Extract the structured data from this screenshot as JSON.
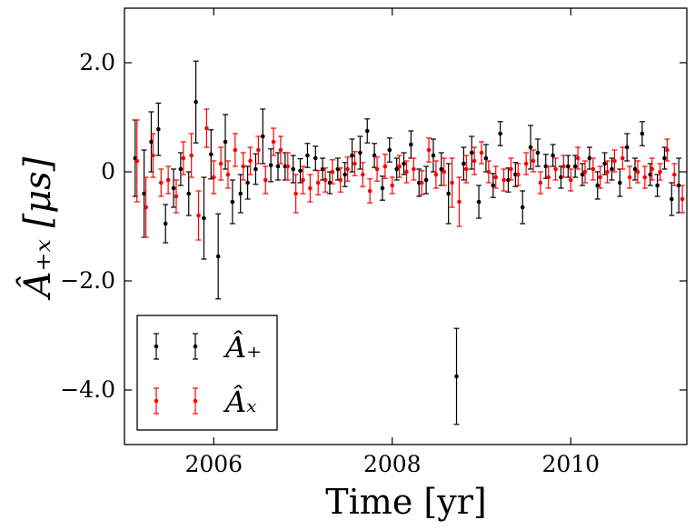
{
  "chart_data": {
    "type": "scatter",
    "title": "",
    "xlabel": "Time [yr]",
    "ylabel": "Â₊ₓ [μs]",
    "xlim": [
      2005.0,
      2011.3
    ],
    "ylim": [
      -5.0,
      3.0
    ],
    "xticks": [
      2006,
      2008,
      2010
    ],
    "xtick_labels": [
      "2006",
      "2008",
      "2010"
    ],
    "yticks": [
      2.0,
      0,
      -2.0,
      -4.0
    ],
    "ytick_labels": [
      "2.0",
      "0",
      "−2.0",
      "−4.0"
    ],
    "grid": false,
    "legend_position": "lower-left",
    "series": [
      {
        "name": "Â₊",
        "color": "#000000",
        "points": [
          {
            "x": 2005.12,
            "y": 0.25,
            "err": 0.7
          },
          {
            "x": 2005.22,
            "y": -0.4,
            "err": 0.8
          },
          {
            "x": 2005.3,
            "y": 0.55,
            "err": 0.55
          },
          {
            "x": 2005.38,
            "y": 0.78,
            "err": 0.48
          },
          {
            "x": 2005.46,
            "y": -0.95,
            "err": 0.35
          },
          {
            "x": 2005.55,
            "y": -0.3,
            "err": 0.35
          },
          {
            "x": 2005.63,
            "y": 0.05,
            "err": 0.3
          },
          {
            "x": 2005.72,
            "y": -0.4,
            "err": 0.4
          },
          {
            "x": 2005.8,
            "y": 1.28,
            "err": 0.75
          },
          {
            "x": 2005.89,
            "y": -0.85,
            "err": 0.75
          },
          {
            "x": 2005.97,
            "y": 0.32,
            "err": 0.45
          },
          {
            "x": 2006.05,
            "y": -1.55,
            "err": 0.78
          },
          {
            "x": 2006.13,
            "y": 0.55,
            "err": 0.5
          },
          {
            "x": 2006.21,
            "y": -0.55,
            "err": 0.4
          },
          {
            "x": 2006.3,
            "y": -0.4,
            "err": 0.35
          },
          {
            "x": 2006.38,
            "y": -0.2,
            "err": 0.3
          },
          {
            "x": 2006.47,
            "y": 0.05,
            "err": 0.28
          },
          {
            "x": 2006.55,
            "y": 0.65,
            "err": 0.5
          },
          {
            "x": 2006.64,
            "y": 0.12,
            "err": 0.3
          },
          {
            "x": 2006.72,
            "y": 0.1,
            "err": 0.25
          },
          {
            "x": 2006.8,
            "y": 0.1,
            "err": 0.25
          },
          {
            "x": 2006.89,
            "y": 0.05,
            "err": 0.25
          },
          {
            "x": 2006.97,
            "y": 0.02,
            "err": 0.22
          },
          {
            "x": 2007.05,
            "y": 0.3,
            "err": 0.22
          },
          {
            "x": 2007.14,
            "y": 0.25,
            "err": 0.22
          },
          {
            "x": 2007.22,
            "y": 0.05,
            "err": 0.2
          },
          {
            "x": 2007.3,
            "y": -0.2,
            "err": 0.2
          },
          {
            "x": 2007.39,
            "y": 0.05,
            "err": 0.2
          },
          {
            "x": 2007.47,
            "y": -0.05,
            "err": 0.22
          },
          {
            "x": 2007.55,
            "y": 0.3,
            "err": 0.3
          },
          {
            "x": 2007.64,
            "y": 0.35,
            "err": 0.3
          },
          {
            "x": 2007.72,
            "y": 0.75,
            "err": 0.22
          },
          {
            "x": 2007.8,
            "y": 0.3,
            "err": 0.22
          },
          {
            "x": 2007.89,
            "y": -0.3,
            "err": 0.22
          },
          {
            "x": 2007.97,
            "y": 0.4,
            "err": 0.22
          },
          {
            "x": 2008.05,
            "y": 0.05,
            "err": 0.2
          },
          {
            "x": 2008.13,
            "y": 0.15,
            "err": 0.2
          },
          {
            "x": 2008.21,
            "y": 0.5,
            "err": 0.25
          },
          {
            "x": 2008.3,
            "y": -0.2,
            "err": 0.25
          },
          {
            "x": 2008.38,
            "y": -0.15,
            "err": 0.25
          },
          {
            "x": 2008.46,
            "y": 0.3,
            "err": 0.3
          },
          {
            "x": 2008.55,
            "y": 0.05,
            "err": 0.3
          },
          {
            "x": 2008.63,
            "y": -0.4,
            "err": 0.55
          },
          {
            "x": 2008.72,
            "y": -3.75,
            "err": 0.88
          },
          {
            "x": 2008.8,
            "y": 0.15,
            "err": 0.3
          },
          {
            "x": 2008.89,
            "y": 0.35,
            "err": 0.3
          },
          {
            "x": 2008.97,
            "y": -0.55,
            "err": 0.3
          },
          {
            "x": 2009.05,
            "y": 0.25,
            "err": 0.25
          },
          {
            "x": 2009.13,
            "y": -0.25,
            "err": 0.22
          },
          {
            "x": 2009.21,
            "y": 0.7,
            "err": 0.22
          },
          {
            "x": 2009.3,
            "y": -0.15,
            "err": 0.22
          },
          {
            "x": 2009.38,
            "y": -0.05,
            "err": 0.22
          },
          {
            "x": 2009.46,
            "y": -0.65,
            "err": 0.3
          },
          {
            "x": 2009.55,
            "y": 0.45,
            "err": 0.4
          },
          {
            "x": 2009.63,
            "y": 0.35,
            "err": 0.25
          },
          {
            "x": 2009.72,
            "y": 0.1,
            "err": 0.22
          },
          {
            "x": 2009.8,
            "y": 0.3,
            "err": 0.2
          },
          {
            "x": 2009.89,
            "y": -0.1,
            "err": 0.2
          },
          {
            "x": 2009.97,
            "y": 0.1,
            "err": 0.2
          },
          {
            "x": 2010.05,
            "y": 0.1,
            "err": 0.2
          },
          {
            "x": 2010.13,
            "y": -0.05,
            "err": 0.2
          },
          {
            "x": 2010.21,
            "y": 0.25,
            "err": 0.2
          },
          {
            "x": 2010.3,
            "y": -0.25,
            "err": 0.25
          },
          {
            "x": 2010.38,
            "y": 0.15,
            "err": 0.2
          },
          {
            "x": 2010.46,
            "y": 0.05,
            "err": 0.2
          },
          {
            "x": 2010.55,
            "y": -0.2,
            "err": 0.25
          },
          {
            "x": 2010.63,
            "y": 0.45,
            "err": 0.25
          },
          {
            "x": 2010.72,
            "y": 0.05,
            "err": 0.2
          },
          {
            "x": 2010.8,
            "y": 0.7,
            "err": 0.22
          },
          {
            "x": 2010.89,
            "y": -0.05,
            "err": 0.2
          },
          {
            "x": 2010.97,
            "y": -0.25,
            "err": 0.2
          },
          {
            "x": 2011.05,
            "y": 0.25,
            "err": 0.2
          },
          {
            "x": 2011.13,
            "y": -0.5,
            "err": 0.3
          },
          {
            "x": 2011.21,
            "y": -0.25,
            "err": 0.5
          }
        ]
      },
      {
        "name": "Âₓ",
        "color": "#ff0000",
        "points": [
          {
            "x": 2005.14,
            "y": 0.2,
            "err": 0.75
          },
          {
            "x": 2005.24,
            "y": -0.65,
            "err": 0.55
          },
          {
            "x": 2005.32,
            "y": 0.3,
            "err": 0.4
          },
          {
            "x": 2005.41,
            "y": -0.2,
            "err": 0.25
          },
          {
            "x": 2005.49,
            "y": -0.15,
            "err": 0.25
          },
          {
            "x": 2005.58,
            "y": -0.45,
            "err": 0.3
          },
          {
            "x": 2005.66,
            "y": 0.25,
            "err": 0.3
          },
          {
            "x": 2005.75,
            "y": 0.3,
            "err": 0.4
          },
          {
            "x": 2005.83,
            "y": -0.8,
            "err": 0.45
          },
          {
            "x": 2005.92,
            "y": 0.8,
            "err": 0.35
          },
          {
            "x": 2006.0,
            "y": -0.1,
            "err": 0.3
          },
          {
            "x": 2006.08,
            "y": 0.15,
            "err": 0.3
          },
          {
            "x": 2006.16,
            "y": -0.05,
            "err": 0.25
          },
          {
            "x": 2006.24,
            "y": 0.4,
            "err": 0.3
          },
          {
            "x": 2006.33,
            "y": 0.1,
            "err": 0.25
          },
          {
            "x": 2006.41,
            "y": 0.2,
            "err": 0.25
          },
          {
            "x": 2006.5,
            "y": 0.4,
            "err": 0.25
          },
          {
            "x": 2006.58,
            "y": -0.15,
            "err": 0.25
          },
          {
            "x": 2006.67,
            "y": 0.55,
            "err": 0.25
          },
          {
            "x": 2006.75,
            "y": 0.4,
            "err": 0.25
          },
          {
            "x": 2006.83,
            "y": 0.1,
            "err": 0.25
          },
          {
            "x": 2006.92,
            "y": -0.4,
            "err": 0.35
          },
          {
            "x": 2007.0,
            "y": -0.15,
            "err": 0.25
          },
          {
            "x": 2007.08,
            "y": -0.3,
            "err": 0.25
          },
          {
            "x": 2007.17,
            "y": -0.2,
            "err": 0.22
          },
          {
            "x": 2007.25,
            "y": -0.15,
            "err": 0.22
          },
          {
            "x": 2007.33,
            "y": 0.0,
            "err": 0.22
          },
          {
            "x": 2007.42,
            "y": -0.15,
            "err": 0.22
          },
          {
            "x": 2007.5,
            "y": 0.05,
            "err": 0.22
          },
          {
            "x": 2007.58,
            "y": 0.15,
            "err": 0.22
          },
          {
            "x": 2007.67,
            "y": -0.05,
            "err": 0.22
          },
          {
            "x": 2007.75,
            "y": -0.35,
            "err": 0.22
          },
          {
            "x": 2007.83,
            "y": 0.05,
            "err": 0.22
          },
          {
            "x": 2007.92,
            "y": 0.1,
            "err": 0.22
          },
          {
            "x": 2008.0,
            "y": -0.25,
            "err": 0.15
          },
          {
            "x": 2008.08,
            "y": 0.1,
            "err": 0.2
          },
          {
            "x": 2008.16,
            "y": 0.0,
            "err": 0.2
          },
          {
            "x": 2008.24,
            "y": 0.05,
            "err": 0.2
          },
          {
            "x": 2008.33,
            "y": -0.2,
            "err": 0.22
          },
          {
            "x": 2008.41,
            "y": 0.4,
            "err": 0.22
          },
          {
            "x": 2008.49,
            "y": -0.05,
            "err": 0.25
          },
          {
            "x": 2008.58,
            "y": 0.0,
            "err": 0.25
          },
          {
            "x": 2008.67,
            "y": -0.2,
            "err": 0.45
          },
          {
            "x": 2008.75,
            "y": -0.55,
            "err": 0.45
          },
          {
            "x": 2008.83,
            "y": 0.05,
            "err": 0.25
          },
          {
            "x": 2008.92,
            "y": 0.2,
            "err": 0.25
          },
          {
            "x": 2009.0,
            "y": 0.35,
            "err": 0.2
          },
          {
            "x": 2009.08,
            "y": 0.0,
            "err": 0.2
          },
          {
            "x": 2009.16,
            "y": -0.1,
            "err": 0.2
          },
          {
            "x": 2009.25,
            "y": -0.15,
            "err": 0.2
          },
          {
            "x": 2009.33,
            "y": 0.05,
            "err": 0.2
          },
          {
            "x": 2009.41,
            "y": -0.05,
            "err": 0.2
          },
          {
            "x": 2009.5,
            "y": 0.15,
            "err": 0.2
          },
          {
            "x": 2009.58,
            "y": 0.2,
            "err": 0.2
          },
          {
            "x": 2009.66,
            "y": -0.2,
            "err": 0.2
          },
          {
            "x": 2009.75,
            "y": -0.1,
            "err": 0.2
          },
          {
            "x": 2009.83,
            "y": 0.05,
            "err": 0.2
          },
          {
            "x": 2009.92,
            "y": 0.1,
            "err": 0.2
          },
          {
            "x": 2010.0,
            "y": -0.15,
            "err": 0.2
          },
          {
            "x": 2010.08,
            "y": 0.25,
            "err": 0.2
          },
          {
            "x": 2010.16,
            "y": 0.0,
            "err": 0.2
          },
          {
            "x": 2010.25,
            "y": 0.05,
            "err": 0.2
          },
          {
            "x": 2010.33,
            "y": -0.1,
            "err": 0.2
          },
          {
            "x": 2010.41,
            "y": 0.0,
            "err": 0.2
          },
          {
            "x": 2010.49,
            "y": 0.2,
            "err": 0.2
          },
          {
            "x": 2010.58,
            "y": 0.25,
            "err": 0.2
          },
          {
            "x": 2010.66,
            "y": -0.1,
            "err": 0.2
          },
          {
            "x": 2010.75,
            "y": 0.0,
            "err": 0.2
          },
          {
            "x": 2010.83,
            "y": -0.1,
            "err": 0.2
          },
          {
            "x": 2010.91,
            "y": 0.05,
            "err": 0.2
          },
          {
            "x": 2011.0,
            "y": 0.0,
            "err": 0.15
          },
          {
            "x": 2011.08,
            "y": 0.4,
            "err": 0.2
          },
          {
            "x": 2011.16,
            "y": -0.05,
            "err": 0.2
          },
          {
            "x": 2011.25,
            "y": -0.5,
            "err": 0.25
          }
        ]
      }
    ]
  }
}
